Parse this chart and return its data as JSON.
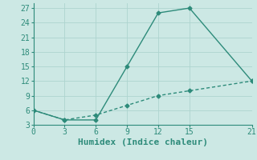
{
  "line1_x": [
    0,
    3,
    6,
    9,
    12,
    15,
    21
  ],
  "line1_y": [
    6,
    4,
    4,
    15,
    26,
    27,
    12
  ],
  "line2_x": [
    0,
    3,
    6,
    9,
    12,
    15,
    21
  ],
  "line2_y": [
    6,
    4,
    5,
    7,
    9,
    10,
    12
  ],
  "line_color": "#2d8b7a",
  "bg_color": "#cce8e4",
  "grid_color": "#aed4cf",
  "xlabel": "Humidex (Indice chaleur)",
  "xlim": [
    0,
    21
  ],
  "ylim": [
    3,
    28
  ],
  "xticks": [
    0,
    3,
    6,
    9,
    12,
    15,
    21
  ],
  "yticks": [
    3,
    6,
    9,
    12,
    15,
    18,
    21,
    24,
    27
  ],
  "marker": "D",
  "markersize": 2.5,
  "linewidth": 1.0,
  "font_family": "monospace",
  "xlabel_fontsize": 8,
  "tick_fontsize": 7
}
